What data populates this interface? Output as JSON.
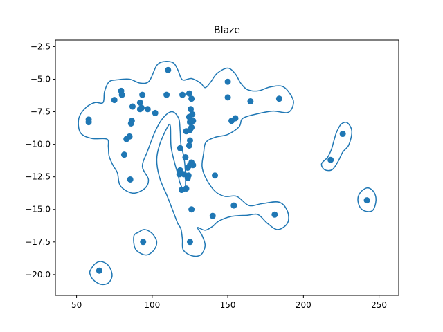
{
  "chart_data": {
    "type": "scatter",
    "title": "Blaze",
    "xlabel": "",
    "ylabel": "",
    "xlim": [
      36,
      263
    ],
    "ylim": [
      -21.6,
      -2.0
    ],
    "xticks": [
      50,
      100,
      150,
      200,
      250
    ],
    "yticks": [
      -2.5,
      -5.0,
      -7.5,
      -10.0,
      -12.5,
      -15.0,
      -17.5,
      -20.0
    ],
    "xtick_labels": [
      "50",
      "100",
      "150",
      "200",
      "250"
    ],
    "ytick_labels": [
      "−2.5",
      "−5.0",
      "−7.5",
      "−10.0",
      "−12.5",
      "−15.0",
      "−17.5",
      "−20.0"
    ],
    "grid": false,
    "point_color": "#1f77b4",
    "contour_color": "#1f77b4",
    "points": [
      [
        110.5,
        -4.3
      ],
      [
        150.0,
        -5.2
      ],
      [
        79.5,
        -5.9
      ],
      [
        80.0,
        -6.2
      ],
      [
        75.0,
        -6.6
      ],
      [
        93.5,
        -6.2
      ],
      [
        109.5,
        -6.2
      ],
      [
        120.0,
        -6.2
      ],
      [
        124.5,
        -6.1
      ],
      [
        126.0,
        -6.5
      ],
      [
        150.0,
        -6.4
      ],
      [
        165.0,
        -6.7
      ],
      [
        184.0,
        -6.5
      ],
      [
        92.0,
        -6.8
      ],
      [
        87.0,
        -7.1
      ],
      [
        92.0,
        -7.3
      ],
      [
        93.0,
        -7.2
      ],
      [
        97.0,
        -7.3
      ],
      [
        102.0,
        -7.6
      ],
      [
        125.5,
        -7.3
      ],
      [
        126.5,
        -7.7
      ],
      [
        124.5,
        -7.9
      ],
      [
        127.0,
        -8.2
      ],
      [
        125.0,
        -8.3
      ],
      [
        152.5,
        -8.2
      ],
      [
        155.0,
        -8.0
      ],
      [
        58.0,
        -8.1
      ],
      [
        58.0,
        -8.3
      ],
      [
        86.5,
        -8.2
      ],
      [
        86.0,
        -8.4
      ],
      [
        85.0,
        -9.4
      ],
      [
        83.0,
        -9.6
      ],
      [
        125.0,
        -8.9
      ],
      [
        126.0,
        -8.7
      ],
      [
        122.5,
        -9.0
      ],
      [
        125.0,
        -9.7
      ],
      [
        124.5,
        -10.1
      ],
      [
        118.5,
        -10.3
      ],
      [
        81.5,
        -10.8
      ],
      [
        122.0,
        -11.0
      ],
      [
        126.0,
        -11.4
      ],
      [
        125.0,
        -11.6
      ],
      [
        127.0,
        -11.6
      ],
      [
        123.5,
        -11.8
      ],
      [
        118.5,
        -12.0
      ],
      [
        121.0,
        -12.3
      ],
      [
        118.0,
        -12.3
      ],
      [
        124.0,
        -12.4
      ],
      [
        123.5,
        -12.6
      ],
      [
        141.5,
        -12.4
      ],
      [
        119.5,
        -13.5
      ],
      [
        122.5,
        -13.4
      ],
      [
        85.5,
        -12.7
      ],
      [
        126.0,
        -15.0
      ],
      [
        154.0,
        -14.7
      ],
      [
        140.0,
        -15.5
      ],
      [
        181.0,
        -15.4
      ],
      [
        94.0,
        -17.5
      ],
      [
        125.0,
        -17.5
      ],
      [
        65.0,
        -19.7
      ],
      [
        218.0,
        -11.2
      ],
      [
        226.0,
        -9.2
      ],
      [
        242.0,
        -14.3
      ]
    ],
    "contours": [
      [
        [
          120.0,
          -5.05
        ],
        [
          126.0,
          -4.95
        ],
        [
          132.0,
          -5.3
        ],
        [
          135.0,
          -5.65
        ],
        [
          138.5,
          -5.25
        ],
        [
          143.0,
          -4.55
        ],
        [
          150.0,
          -4.15
        ],
        [
          155.0,
          -4.6
        ],
        [
          158.5,
          -5.3
        ],
        [
          163.0,
          -5.8
        ],
        [
          170.0,
          -5.9
        ],
        [
          178.0,
          -5.6
        ],
        [
          186.0,
          -5.55
        ],
        [
          191.0,
          -6.1
        ],
        [
          193.5,
          -6.8
        ],
        [
          190.0,
          -7.55
        ],
        [
          180.0,
          -7.45
        ],
        [
          170.0,
          -7.65
        ],
        [
          160.0,
          -8.0
        ],
        [
          157.5,
          -8.65
        ],
        [
          150.0,
          -9.25
        ],
        [
          142.0,
          -9.45
        ],
        [
          135.5,
          -9.85
        ],
        [
          134.0,
          -10.7
        ],
        [
          133.0,
          -11.7
        ],
        [
          135.5,
          -12.6
        ],
        [
          141.5,
          -13.6
        ],
        [
          148.0,
          -14.0
        ],
        [
          156.0,
          -14.0
        ],
        [
          164.0,
          -14.7
        ],
        [
          173.0,
          -14.55
        ],
        [
          184.0,
          -14.45
        ],
        [
          189.5,
          -15.15
        ],
        [
          189.5,
          -16.05
        ],
        [
          183.0,
          -16.55
        ],
        [
          176.0,
          -16.05
        ],
        [
          170.0,
          -15.4
        ],
        [
          163.0,
          -15.45
        ],
        [
          152.0,
          -15.55
        ],
        [
          144.0,
          -15.9
        ],
        [
          140.0,
          -16.3
        ],
        [
          135.0,
          -16.6
        ],
        [
          130.0,
          -16.4
        ],
        [
          133.0,
          -17.0
        ],
        [
          135.0,
          -17.8
        ],
        [
          132.0,
          -18.5
        ],
        [
          126.0,
          -18.55
        ],
        [
          120.5,
          -18.1
        ],
        [
          120.0,
          -17.3
        ],
        [
          119.0,
          -16.5
        ],
        [
          117.0,
          -16.1
        ],
        [
          114.0,
          -15.2
        ],
        [
          110.0,
          -14.0
        ],
        [
          105.0,
          -12.6
        ],
        [
          103.0,
          -11.2
        ],
        [
          105.0,
          -10.0
        ],
        [
          110.0,
          -8.7
        ],
        [
          112.0,
          -8.6
        ],
        [
          112.5,
          -10.2
        ],
        [
          115.0,
          -11.5
        ],
        [
          117.0,
          -12.3
        ],
        [
          118.5,
          -13.0
        ],
        [
          121.5,
          -13.6
        ],
        [
          122.0,
          -12.3
        ],
        [
          121.0,
          -11.0
        ],
        [
          119.0,
          -10.0
        ],
        [
          118.5,
          -9.0
        ],
        [
          117.5,
          -8.0
        ],
        [
          113.0,
          -7.5
        ],
        [
          107.0,
          -8.0
        ],
        [
          102.0,
          -9.0
        ],
        [
          97.0,
          -10.5
        ],
        [
          93.5,
          -11.7
        ],
        [
          97.5,
          -12.7
        ],
        [
          95.0,
          -13.4
        ],
        [
          87.0,
          -13.75
        ],
        [
          79.0,
          -13.2
        ],
        [
          77.0,
          -12.2
        ],
        [
          74.0,
          -11.6
        ],
        [
          71.5,
          -10.9
        ],
        [
          71.0,
          -10.2
        ],
        [
          70.0,
          -9.6
        ],
        [
          60.0,
          -9.55
        ],
        [
          52.5,
          -9.1
        ],
        [
          51.5,
          -8.0
        ],
        [
          56.0,
          -7.2
        ],
        [
          62.0,
          -6.8
        ],
        [
          67.5,
          -6.8
        ],
        [
          68.5,
          -5.95
        ],
        [
          71.5,
          -5.2
        ],
        [
          77.0,
          -5.05
        ],
        [
          85.0,
          -5.0
        ],
        [
          92.0,
          -5.3
        ],
        [
          98.0,
          -5.15
        ],
        [
          103.0,
          -3.95
        ],
        [
          108.0,
          -3.65
        ],
        [
          114.0,
          -3.75
        ],
        [
          117.0,
          -4.3
        ]
      ],
      [
        [
          59.0,
          -19.7
        ],
        [
          62.0,
          -19.2
        ],
        [
          66.0,
          -19.0
        ],
        [
          71.0,
          -19.3
        ],
        [
          73.5,
          -20.05
        ],
        [
          71.0,
          -20.65
        ],
        [
          66.0,
          -20.75
        ],
        [
          61.0,
          -20.4
        ],
        [
          59.0,
          -20.0
        ]
      ],
      [
        [
          88.0,
          -17.0
        ],
        [
          91.0,
          -16.75
        ],
        [
          95.0,
          -16.55
        ],
        [
          100.0,
          -16.85
        ],
        [
          103.0,
          -17.5
        ],
        [
          101.0,
          -18.15
        ],
        [
          96.0,
          -18.5
        ],
        [
          90.0,
          -18.2
        ],
        [
          88.0,
          -17.7
        ]
      ],
      [
        [
          212.0,
          -11.5
        ],
        [
          216.0,
          -11.0
        ],
        [
          218.5,
          -10.4
        ],
        [
          220.0,
          -9.8
        ],
        [
          222.0,
          -9.05
        ],
        [
          225.0,
          -8.45
        ],
        [
          229.0,
          -8.35
        ],
        [
          232.0,
          -9.0
        ],
        [
          230.0,
          -10.05
        ],
        [
          226.0,
          -10.6
        ],
        [
          223.0,
          -11.3
        ],
        [
          219.0,
          -11.95
        ],
        [
          214.0,
          -11.95
        ]
      ],
      [
        [
          236.0,
          -14.2
        ],
        [
          238.0,
          -13.65
        ],
        [
          242.5,
          -13.35
        ],
        [
          246.5,
          -13.65
        ],
        [
          248.0,
          -14.3
        ],
        [
          246.0,
          -15.05
        ],
        [
          241.5,
          -15.15
        ],
        [
          237.5,
          -14.85
        ]
      ]
    ]
  }
}
